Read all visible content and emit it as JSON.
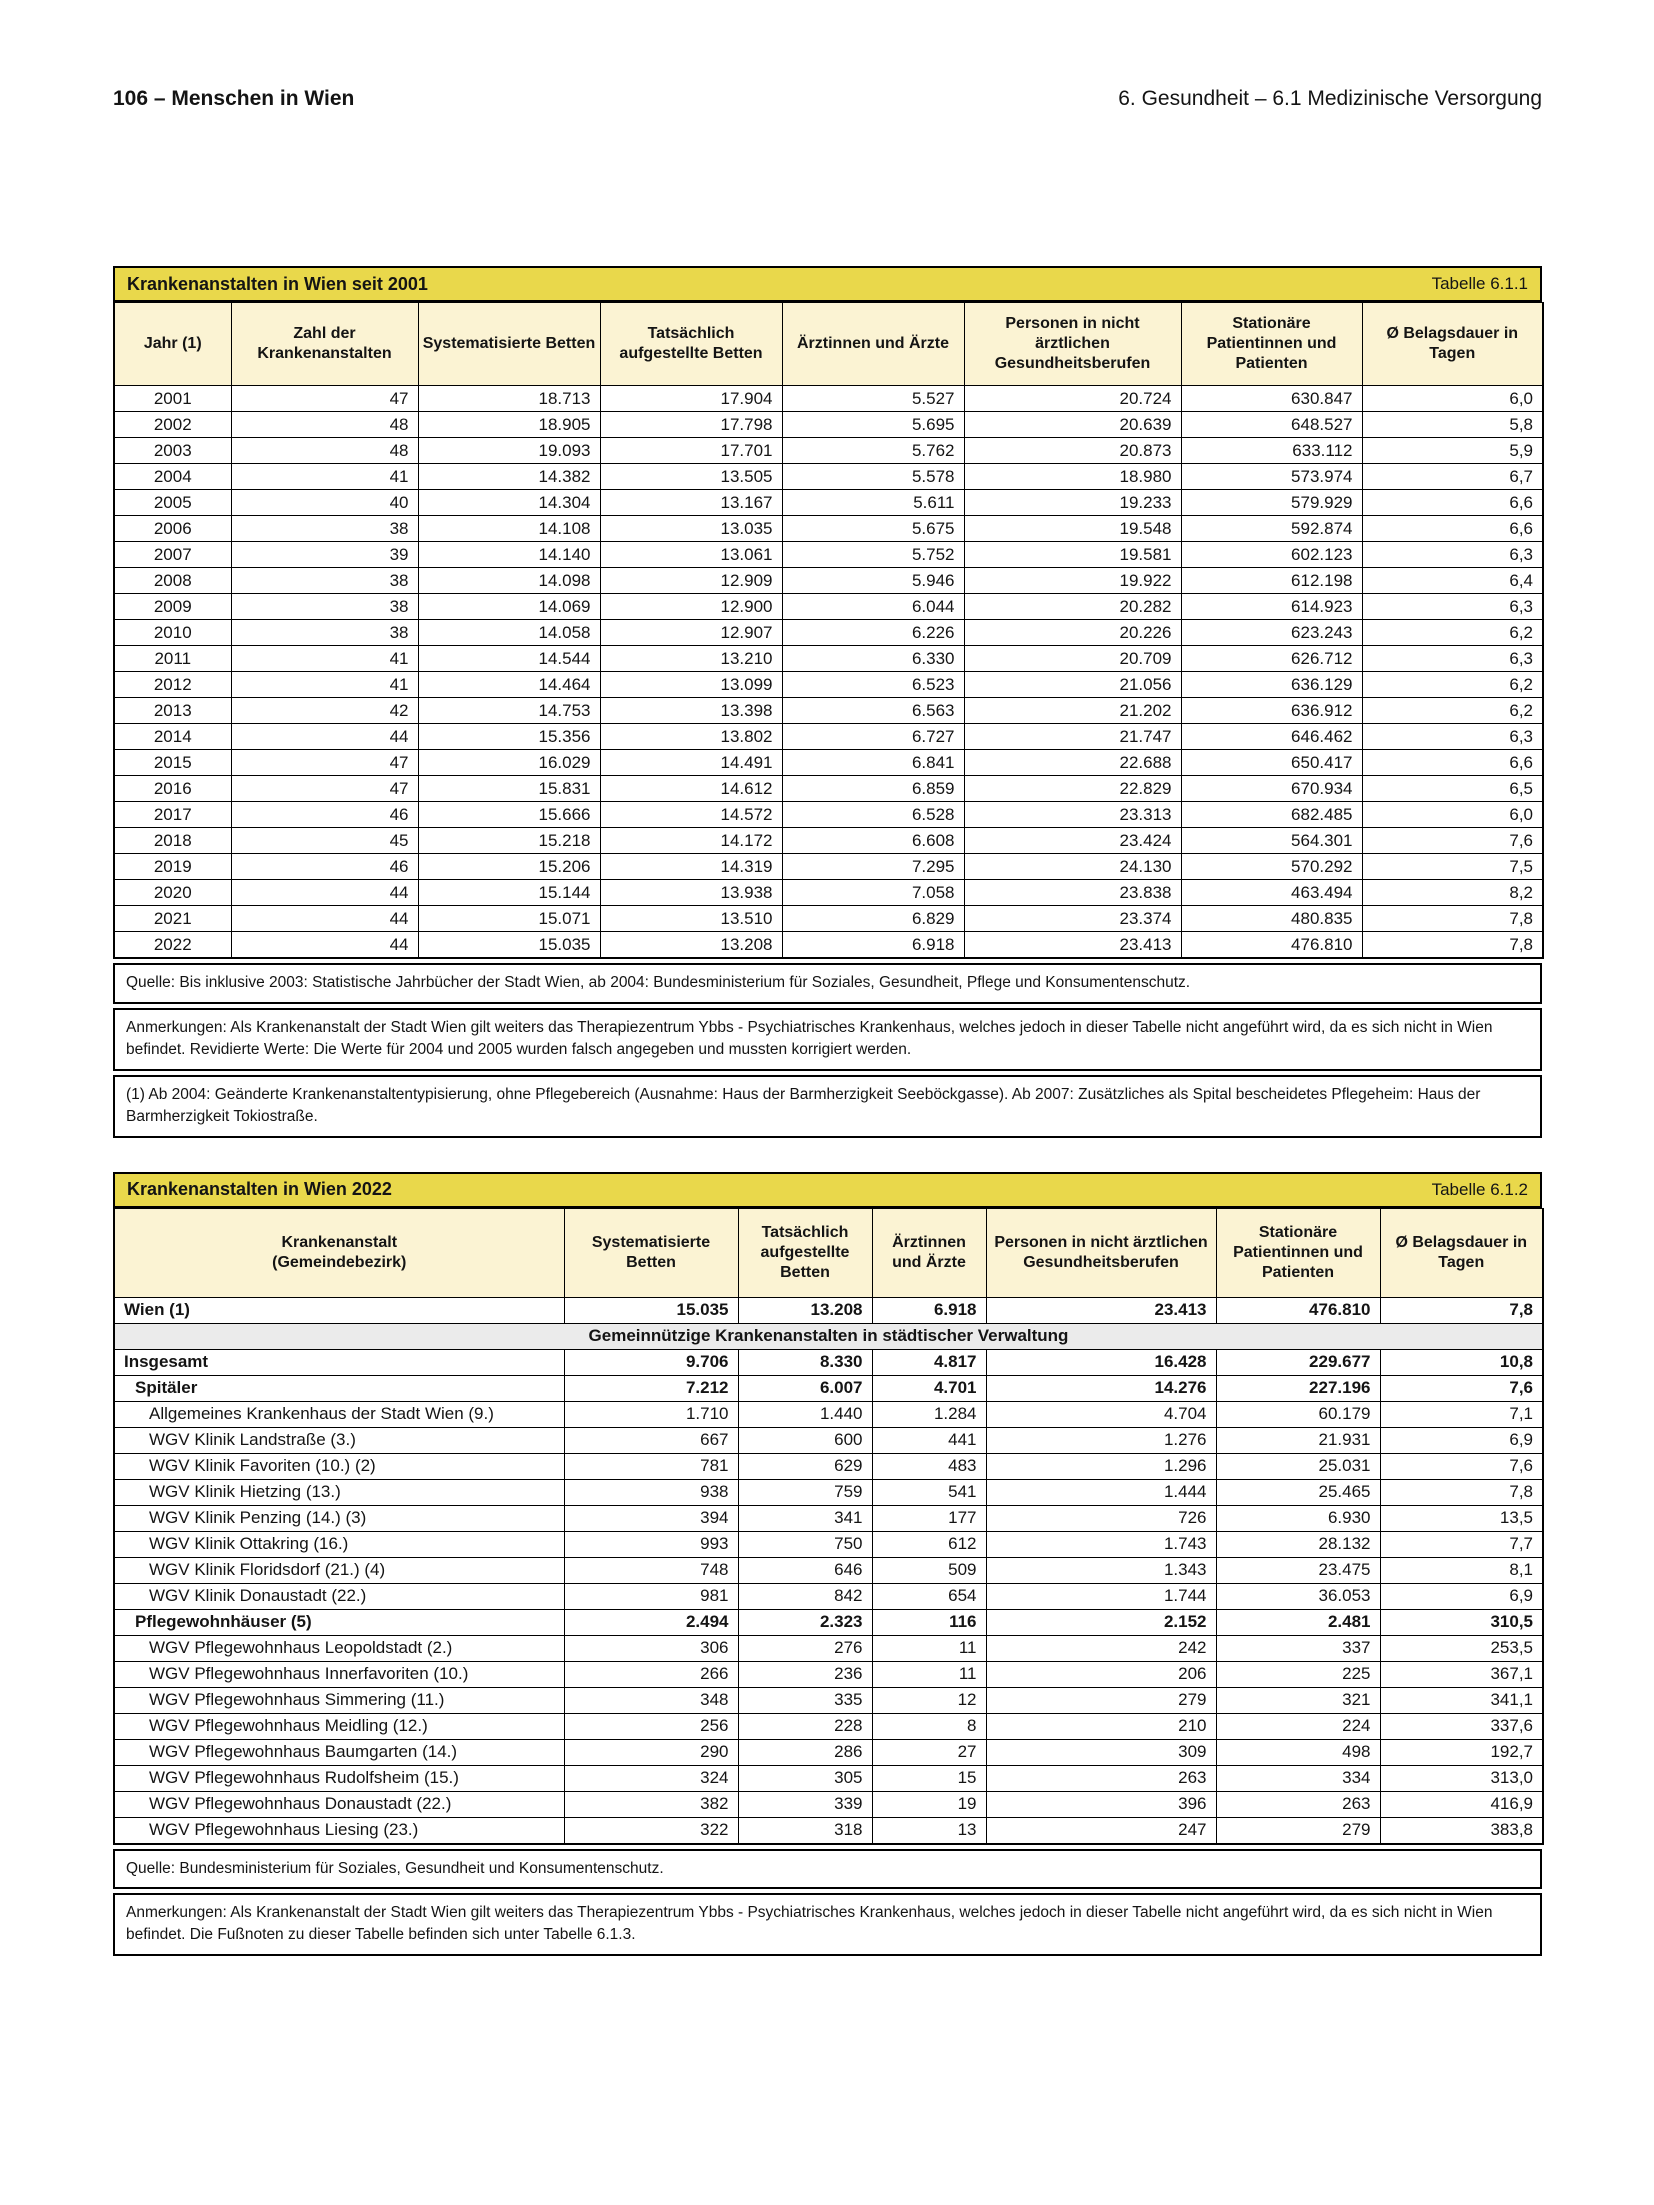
{
  "page_header": {
    "left": "106 – Menschen in Wien",
    "right": "6. Gesundheit – 6.1 Medizinische Versorgung"
  },
  "colors": {
    "title_bar_yellow": "#E9D84B",
    "header_cell_cream": "#FBF3D3",
    "section_row_gray": "#EBEBEB",
    "border_black": "#000000"
  },
  "table1": {
    "title": "Krankenanstalten in Wien seit 2001",
    "table_label": "Tabelle 6.1.1",
    "columns": [
      "Jahr (1)",
      "Zahl der Krankenanstalten",
      "Systematisierte Betten",
      "Tatsächlich aufgestellte Betten",
      "Ärztinnen und Ärzte",
      "Personen in nicht ärztlichen Gesundheitsberufen",
      "Stationäre Patientinnen und Patienten",
      "Ø Belagsdauer in Tagen"
    ],
    "rows": [
      [
        "2001",
        "47",
        "18.713",
        "17.904",
        "5.527",
        "20.724",
        "630.847",
        "6,0"
      ],
      [
        "2002",
        "48",
        "18.905",
        "17.798",
        "5.695",
        "20.639",
        "648.527",
        "5,8"
      ],
      [
        "2003",
        "48",
        "19.093",
        "17.701",
        "5.762",
        "20.873",
        "633.112",
        "5,9"
      ],
      [
        "2004",
        "41",
        "14.382",
        "13.505",
        "5.578",
        "18.980",
        "573.974",
        "6,7"
      ],
      [
        "2005",
        "40",
        "14.304",
        "13.167",
        "5.611",
        "19.233",
        "579.929",
        "6,6"
      ],
      [
        "2006",
        "38",
        "14.108",
        "13.035",
        "5.675",
        "19.548",
        "592.874",
        "6,6"
      ],
      [
        "2007",
        "39",
        "14.140",
        "13.061",
        "5.752",
        "19.581",
        "602.123",
        "6,3"
      ],
      [
        "2008",
        "38",
        "14.098",
        "12.909",
        "5.946",
        "19.922",
        "612.198",
        "6,4"
      ],
      [
        "2009",
        "38",
        "14.069",
        "12.900",
        "6.044",
        "20.282",
        "614.923",
        "6,3"
      ],
      [
        "2010",
        "38",
        "14.058",
        "12.907",
        "6.226",
        "20.226",
        "623.243",
        "6,2"
      ],
      [
        "2011",
        "41",
        "14.544",
        "13.210",
        "6.330",
        "20.709",
        "626.712",
        "6,3"
      ],
      [
        "2012",
        "41",
        "14.464",
        "13.099",
        "6.523",
        "21.056",
        "636.129",
        "6,2"
      ],
      [
        "2013",
        "42",
        "14.753",
        "13.398",
        "6.563",
        "21.202",
        "636.912",
        "6,2"
      ],
      [
        "2014",
        "44",
        "15.356",
        "13.802",
        "6.727",
        "21.747",
        "646.462",
        "6,3"
      ],
      [
        "2015",
        "47",
        "16.029",
        "14.491",
        "6.841",
        "22.688",
        "650.417",
        "6,6"
      ],
      [
        "2016",
        "47",
        "15.831",
        "14.612",
        "6.859",
        "22.829",
        "670.934",
        "6,5"
      ],
      [
        "2017",
        "46",
        "15.666",
        "14.572",
        "6.528",
        "23.313",
        "682.485",
        "6,0"
      ],
      [
        "2018",
        "45",
        "15.218",
        "14.172",
        "6.608",
        "23.424",
        "564.301",
        "7,6"
      ],
      [
        "2019",
        "46",
        "15.206",
        "14.319",
        "7.295",
        "24.130",
        "570.292",
        "7,5"
      ],
      [
        "2020",
        "44",
        "15.144",
        "13.938",
        "7.058",
        "23.838",
        "463.494",
        "8,2"
      ],
      [
        "2021",
        "44",
        "15.071",
        "13.510",
        "6.829",
        "23.374",
        "480.835",
        "7,8"
      ],
      [
        "2022",
        "44",
        "15.035",
        "13.208",
        "6.918",
        "23.413",
        "476.810",
        "7,8"
      ]
    ],
    "quelle": "Quelle: Bis inklusive 2003: Statistische Jahrbücher der Stadt Wien, ab 2004: Bundesministerium für Soziales, Gesundheit, Pflege und Konsumentenschutz.",
    "anmerkungen": "Anmerkungen: Als Krankenanstalt der Stadt Wien gilt weiters das Therapiezentrum Ybbs - Psychiatrisches Krankenhaus, welches jedoch in dieser Tabelle nicht angeführt wird, da es sich nicht in Wien befindet. Revidierte Werte: Die Werte für 2004 und 2005 wurden falsch angegeben und mussten korrigiert werden.",
    "fussnote": "(1) Ab 2004: Geänderte Krankenanstaltentypisierung, ohne Pflegebereich (Ausnahme: Haus der Barmherzigkeit Seeböckgasse). Ab 2007: Zusätzliches als Spital bescheidetes Pflegeheim: Haus der Barmherzigkeit Tokiostraße."
  },
  "table2": {
    "title": "Krankenanstalten in Wien 2022",
    "table_label": "Tabelle 6.1.2",
    "columns": [
      "Krankenanstalt\n(Gemeindebezirk)",
      "Systematisierte Betten",
      "Tatsächlich aufgestellte Betten",
      "Ärztinnen und Ärzte",
      "Personen in nicht ärztlichen Gesundheitsberufen",
      "Stationäre Patientinnen und Patienten",
      "Ø Belagsdauer in Tagen"
    ],
    "rows": [
      {
        "label": "Wien (1)",
        "bold": true,
        "indent": 0,
        "values": [
          "15.035",
          "13.208",
          "6.918",
          "23.413",
          "476.810",
          "7,8"
        ]
      },
      {
        "label": "Gemeinnützige Krankenanstalten in städtischer Verwaltung",
        "section": true
      },
      {
        "label": "Insgesamt",
        "bold": true,
        "indent": 0,
        "values": [
          "9.706",
          "8.330",
          "4.817",
          "16.428",
          "229.677",
          "10,8"
        ]
      },
      {
        "label": "Spitäler",
        "bold": true,
        "indent": 1,
        "values": [
          "7.212",
          "6.007",
          "4.701",
          "14.276",
          "227.196",
          "7,6"
        ]
      },
      {
        "label": "Allgemeines Krankenhaus der Stadt Wien (9.)",
        "bold": false,
        "indent": 2,
        "values": [
          "1.710",
          "1.440",
          "1.284",
          "4.704",
          "60.179",
          "7,1"
        ]
      },
      {
        "label": "WGV Klinik Landstraße (3.)",
        "bold": false,
        "indent": 2,
        "values": [
          "667",
          "600",
          "441",
          "1.276",
          "21.931",
          "6,9"
        ]
      },
      {
        "label": "WGV Klinik Favoriten (10.) (2)",
        "bold": false,
        "indent": 2,
        "values": [
          "781",
          "629",
          "483",
          "1.296",
          "25.031",
          "7,6"
        ]
      },
      {
        "label": "WGV Klinik Hietzing (13.)",
        "bold": false,
        "indent": 2,
        "values": [
          "938",
          "759",
          "541",
          "1.444",
          "25.465",
          "7,8"
        ]
      },
      {
        "label": "WGV Klinik Penzing (14.) (3)",
        "bold": false,
        "indent": 2,
        "values": [
          "394",
          "341",
          "177",
          "726",
          "6.930",
          "13,5"
        ]
      },
      {
        "label": "WGV Klinik Ottakring (16.)",
        "bold": false,
        "indent": 2,
        "values": [
          "993",
          "750",
          "612",
          "1.743",
          "28.132",
          "7,7"
        ]
      },
      {
        "label": "WGV Klinik Floridsdorf (21.) (4)",
        "bold": false,
        "indent": 2,
        "values": [
          "748",
          "646",
          "509",
          "1.343",
          "23.475",
          "8,1"
        ]
      },
      {
        "label": "WGV Klinik Donaustadt (22.)",
        "bold": false,
        "indent": 2,
        "values": [
          "981",
          "842",
          "654",
          "1.744",
          "36.053",
          "6,9"
        ]
      },
      {
        "label": "Pflegewohnhäuser (5)",
        "bold": true,
        "indent": 1,
        "values": [
          "2.494",
          "2.323",
          "116",
          "2.152",
          "2.481",
          "310,5"
        ]
      },
      {
        "label": "WGV Pflegewohnhaus Leopoldstadt (2.)",
        "bold": false,
        "indent": 2,
        "values": [
          "306",
          "276",
          "11",
          "242",
          "337",
          "253,5"
        ]
      },
      {
        "label": "WGV Pflegewohnhaus Innerfavoriten (10.)",
        "bold": false,
        "indent": 2,
        "values": [
          "266",
          "236",
          "11",
          "206",
          "225",
          "367,1"
        ]
      },
      {
        "label": "WGV Pflegewohnhaus Simmering (11.)",
        "bold": false,
        "indent": 2,
        "values": [
          "348",
          "335",
          "12",
          "279",
          "321",
          "341,1"
        ]
      },
      {
        "label": "WGV Pflegewohnhaus Meidling (12.)",
        "bold": false,
        "indent": 2,
        "values": [
          "256",
          "228",
          "8",
          "210",
          "224",
          "337,6"
        ]
      },
      {
        "label": "WGV Pflegewohnhaus Baumgarten (14.)",
        "bold": false,
        "indent": 2,
        "values": [
          "290",
          "286",
          "27",
          "309",
          "498",
          "192,7"
        ]
      },
      {
        "label": "WGV Pflegewohnhaus Rudolfsheim (15.)",
        "bold": false,
        "indent": 2,
        "values": [
          "324",
          "305",
          "15",
          "263",
          "334",
          "313,0"
        ]
      },
      {
        "label": "WGV Pflegewohnhaus Donaustadt (22.)",
        "bold": false,
        "indent": 2,
        "values": [
          "382",
          "339",
          "19",
          "396",
          "263",
          "416,9"
        ]
      },
      {
        "label": "WGV Pflegewohnhaus Liesing (23.)",
        "bold": false,
        "indent": 2,
        "values": [
          "322",
          "318",
          "13",
          "247",
          "279",
          "383,8"
        ]
      }
    ],
    "quelle": "Quelle: Bundesministerium für Soziales, Gesundheit und Konsumentenschutz.",
    "anmerkungen": "Anmerkungen: Als Krankenanstalt der Stadt Wien gilt weiters das Therapiezentrum Ybbs - Psychiatrisches Krankenhaus, welches jedoch in dieser Tabelle nicht angeführt wird, da es sich nicht in Wien befindet. Die Fußnoten zu dieser Tabelle befinden sich unter Tabelle 6.1.3."
  }
}
